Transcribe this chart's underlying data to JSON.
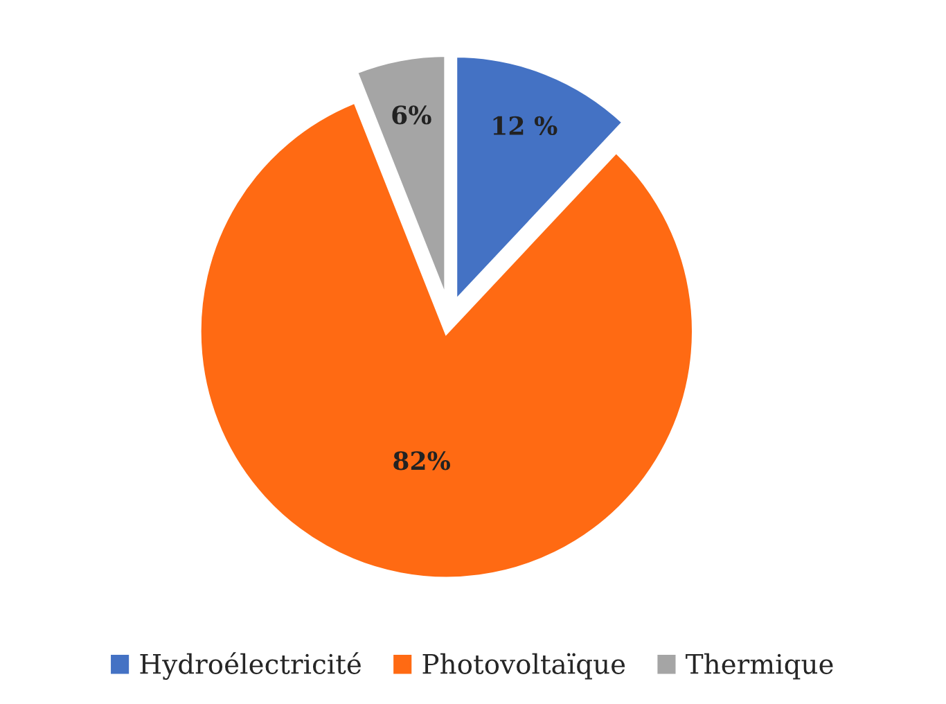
{
  "chart_data": {
    "type": "pie",
    "categories": [
      "Hydroélectricité",
      "Photovoltaïque",
      "Thermique"
    ],
    "values": [
      12,
      82,
      6
    ],
    "value_labels": [
      "12 %",
      "82%",
      "6%"
    ],
    "colors": [
      "#4472c4",
      "#ff6a13",
      "#a5a5a5"
    ],
    "legend": "bottom"
  }
}
